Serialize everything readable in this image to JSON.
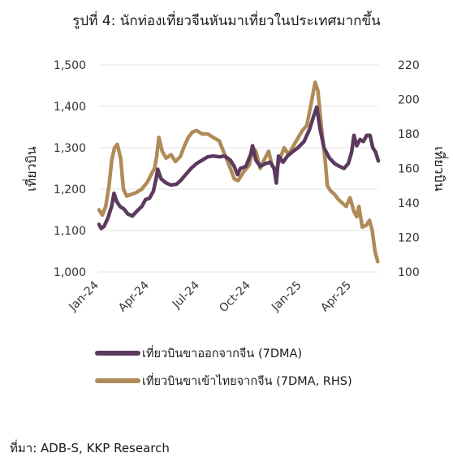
{
  "title": "รูปที่ 4: นักท่องเที่ยวจีนหันมาเที่ยวในประเทศมากขึ้น",
  "source": "ที่มา: ADB-S, KKP Research",
  "chart_data": {
    "type": "line",
    "x_ticks": [
      "Jan-24",
      "Apr-24",
      "Jul-24",
      "Oct-24",
      "Jan-25",
      "Apr-25"
    ],
    "y_left": {
      "label": "เที่ยวบิน",
      "min": 1000,
      "max": 1500,
      "ticks": [
        "1,000",
        "1,100",
        "1,200",
        "1,300",
        "1,400",
        "1,500"
      ]
    },
    "y_right": {
      "label": "เที่ยวบิน",
      "min": 100,
      "max": 220,
      "ticks": [
        "100",
        "120",
        "140",
        "160",
        "180",
        "200",
        "220"
      ]
    },
    "grid": "horizontal",
    "legend_position": "bottom",
    "series": [
      {
        "name": "เที่ยวบินขาออกจากจีน (7DMA)",
        "axis": "left",
        "color": "#5b3a5e",
        "points": [
          [
            "2024-01-01",
            1115
          ],
          [
            "2024-01-05",
            1105
          ],
          [
            "2024-01-10",
            1110
          ],
          [
            "2024-01-17",
            1130
          ],
          [
            "2024-01-24",
            1160
          ],
          [
            "2024-01-28",
            1190
          ],
          [
            "2024-02-02",
            1170
          ],
          [
            "2024-02-08",
            1158
          ],
          [
            "2024-02-15",
            1152
          ],
          [
            "2024-02-22",
            1140
          ],
          [
            "2024-03-01",
            1135
          ],
          [
            "2024-03-10",
            1148
          ],
          [
            "2024-03-18",
            1158
          ],
          [
            "2024-03-25",
            1175
          ],
          [
            "2024-04-01",
            1178
          ],
          [
            "2024-04-08",
            1195
          ],
          [
            "2024-04-13",
            1225
          ],
          [
            "2024-04-16",
            1248
          ],
          [
            "2024-04-22",
            1225
          ],
          [
            "2024-05-01",
            1215
          ],
          [
            "2024-05-10",
            1210
          ],
          [
            "2024-05-20",
            1212
          ],
          [
            "2024-05-28",
            1222
          ],
          [
            "2024-06-05",
            1235
          ],
          [
            "2024-06-15",
            1250
          ],
          [
            "2024-06-25",
            1262
          ],
          [
            "2024-07-05",
            1270
          ],
          [
            "2024-07-15",
            1278
          ],
          [
            "2024-07-25",
            1280
          ],
          [
            "2024-08-05",
            1278
          ],
          [
            "2024-08-15",
            1280
          ],
          [
            "2024-08-25",
            1270
          ],
          [
            "2024-09-01",
            1255
          ],
          [
            "2024-09-07",
            1235
          ],
          [
            "2024-09-12",
            1250
          ],
          [
            "2024-09-22",
            1255
          ],
          [
            "2024-10-01",
            1285
          ],
          [
            "2024-10-04",
            1305
          ],
          [
            "2024-10-10",
            1270
          ],
          [
            "2024-10-18",
            1255
          ],
          [
            "2024-10-28",
            1262
          ],
          [
            "2024-11-05",
            1265
          ],
          [
            "2024-11-12",
            1250
          ],
          [
            "2024-11-16",
            1215
          ],
          [
            "2024-11-20",
            1280
          ],
          [
            "2024-11-28",
            1265
          ],
          [
            "2024-12-06",
            1280
          ],
          [
            "2024-12-15",
            1290
          ],
          [
            "2024-12-25",
            1300
          ],
          [
            "2025-01-05",
            1315
          ],
          [
            "2025-01-15",
            1345
          ],
          [
            "2025-01-22",
            1375
          ],
          [
            "2025-01-28",
            1398
          ],
          [
            "2025-02-03",
            1345
          ],
          [
            "2025-02-10",
            1300
          ],
          [
            "2025-02-20",
            1275
          ],
          [
            "2025-03-01",
            1262
          ],
          [
            "2025-03-10",
            1255
          ],
          [
            "2025-03-18",
            1250
          ],
          [
            "2025-03-26",
            1262
          ],
          [
            "2025-04-01",
            1290
          ],
          [
            "2025-04-05",
            1330
          ],
          [
            "2025-04-10",
            1305
          ],
          [
            "2025-04-16",
            1320
          ],
          [
            "2025-04-22",
            1315
          ],
          [
            "2025-04-28",
            1330
          ],
          [
            "2025-05-04",
            1330
          ],
          [
            "2025-05-09",
            1300
          ],
          [
            "2025-05-14",
            1290
          ],
          [
            "2025-05-19",
            1268
          ]
        ]
      },
      {
        "name": "เที่ยวบินขาเข้าไทยจากจีน (7DMA, RHS)",
        "axis": "right",
        "color": "#b08b58",
        "points": [
          [
            "2024-01-01",
            136
          ],
          [
            "2024-01-07",
            133
          ],
          [
            "2024-01-13",
            138
          ],
          [
            "2024-01-19",
            150
          ],
          [
            "2024-01-24",
            165
          ],
          [
            "2024-01-29",
            172
          ],
          [
            "2024-02-03",
            174
          ],
          [
            "2024-02-09",
            166
          ],
          [
            "2024-02-14",
            148
          ],
          [
            "2024-02-20",
            144
          ],
          [
            "2024-02-28",
            145
          ],
          [
            "2024-03-08",
            146
          ],
          [
            "2024-03-18",
            148
          ],
          [
            "2024-03-28",
            152
          ],
          [
            "2024-04-05",
            157
          ],
          [
            "2024-04-10",
            160
          ],
          [
            "2024-04-14",
            167
          ],
          [
            "2024-04-18",
            178
          ],
          [
            "2024-04-24",
            170
          ],
          [
            "2024-05-01",
            166
          ],
          [
            "2024-05-10",
            168
          ],
          [
            "2024-05-18",
            164
          ],
          [
            "2024-05-27",
            167
          ],
          [
            "2024-06-03",
            173
          ],
          [
            "2024-06-10",
            178
          ],
          [
            "2024-06-17",
            181
          ],
          [
            "2024-06-25",
            182
          ],
          [
            "2024-07-05",
            180
          ],
          [
            "2024-07-15",
            180
          ],
          [
            "2024-07-25",
            178
          ],
          [
            "2024-08-05",
            176
          ],
          [
            "2024-08-15",
            168
          ],
          [
            "2024-08-25",
            160
          ],
          [
            "2024-09-01",
            154
          ],
          [
            "2024-09-08",
            153
          ],
          [
            "2024-09-18",
            158
          ],
          [
            "2024-09-28",
            162
          ],
          [
            "2024-10-05",
            172
          ],
          [
            "2024-10-10",
            170
          ],
          [
            "2024-10-18",
            160
          ],
          [
            "2024-10-25",
            165
          ],
          [
            "2024-11-02",
            170
          ],
          [
            "2024-11-08",
            162
          ],
          [
            "2024-11-15",
            158
          ],
          [
            "2024-11-22",
            165
          ],
          [
            "2024-11-30",
            172
          ],
          [
            "2024-12-08",
            168
          ],
          [
            "2024-12-15",
            172
          ],
          [
            "2024-12-22",
            176
          ],
          [
            "2025-01-02",
            182
          ],
          [
            "2025-01-10",
            185
          ],
          [
            "2025-01-18",
            198
          ],
          [
            "2025-01-25",
            210
          ],
          [
            "2025-01-30",
            205
          ],
          [
            "2025-02-05",
            185
          ],
          [
            "2025-02-12",
            165
          ],
          [
            "2025-02-16",
            150
          ],
          [
            "2025-02-22",
            147
          ],
          [
            "2025-03-01",
            145
          ],
          [
            "2025-03-08",
            142
          ],
          [
            "2025-03-15",
            140
          ],
          [
            "2025-03-22",
            138
          ],
          [
            "2025-03-29",
            143
          ],
          [
            "2025-04-05",
            135
          ],
          [
            "2025-04-10",
            132
          ],
          [
            "2025-04-14",
            138
          ],
          [
            "2025-04-20",
            126
          ],
          [
            "2025-04-27",
            127
          ],
          [
            "2025-05-03",
            130
          ],
          [
            "2025-05-08",
            124
          ],
          [
            "2025-05-13",
            112
          ],
          [
            "2025-05-18",
            106
          ]
        ]
      }
    ]
  }
}
